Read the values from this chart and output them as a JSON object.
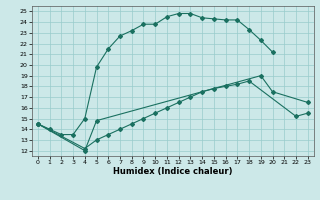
{
  "xlabel": "Humidex (Indice chaleur)",
  "bg_color": "#cce8e8",
  "grid_color": "#99cccc",
  "line_color": "#1a7060",
  "xlim": [
    -0.5,
    23.5
  ],
  "ylim": [
    11.5,
    25.5
  ],
  "xticks": [
    0,
    1,
    2,
    3,
    4,
    5,
    6,
    7,
    8,
    9,
    10,
    11,
    12,
    13,
    14,
    15,
    16,
    17,
    18,
    19,
    20,
    21,
    22,
    23
  ],
  "yticks": [
    12,
    13,
    14,
    15,
    16,
    17,
    18,
    19,
    20,
    21,
    22,
    23,
    24,
    25
  ],
  "line1_x": [
    0,
    1,
    2,
    3,
    4,
    5,
    6,
    7,
    8,
    9,
    10,
    11,
    12,
    13,
    14,
    15,
    16,
    17,
    18,
    19,
    20
  ],
  "line1_y": [
    14.5,
    14.0,
    13.5,
    13.5,
    15.0,
    19.8,
    21.5,
    22.7,
    23.2,
    23.8,
    23.8,
    24.5,
    24.8,
    24.8,
    24.4,
    24.3,
    24.2,
    24.2,
    23.3,
    22.3,
    21.2
  ],
  "line2_x": [
    0,
    4,
    5,
    19,
    20,
    23
  ],
  "line2_y": [
    14.5,
    12.0,
    14.8,
    19.0,
    17.5,
    16.5
  ],
  "line3_x": [
    0,
    4,
    5,
    6,
    7,
    8,
    9,
    10,
    11,
    12,
    13,
    14,
    15,
    16,
    17,
    18,
    22,
    23
  ],
  "line3_y": [
    14.5,
    12.2,
    13.0,
    13.5,
    14.0,
    14.5,
    15.0,
    15.5,
    16.0,
    16.5,
    17.0,
    17.5,
    17.8,
    18.0,
    18.2,
    18.5,
    15.2,
    15.5
  ]
}
